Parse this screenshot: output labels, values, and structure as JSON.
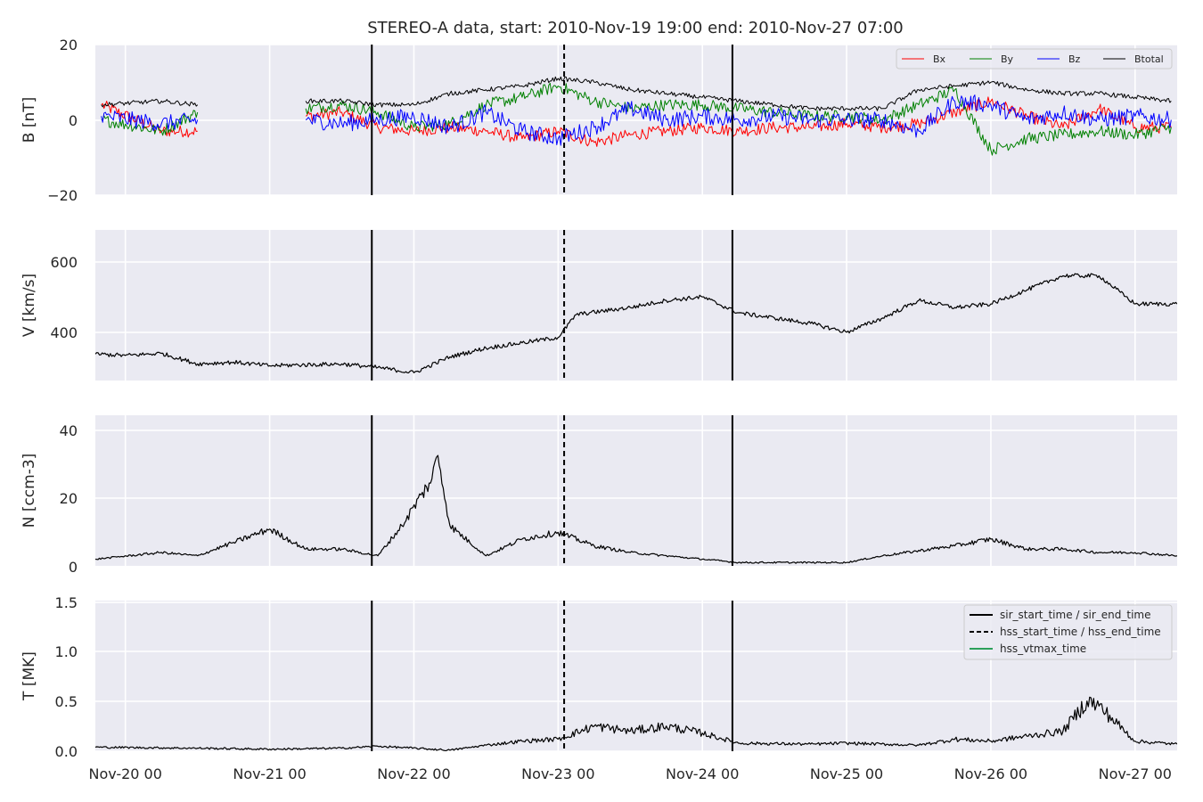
{
  "figure": {
    "title": "STEREO-A data, start: 2010-Nov-19 19:00  end: 2010-Nov-27 07:00"
  },
  "colors": {
    "panel_bg": "#eaeaf2",
    "grid": "#ffffff",
    "Bx": "#ff0000",
    "By": "#008000",
    "Bz": "#0000ff",
    "Btotal": "#000000",
    "event_line": "#000000",
    "vtmax": "#2ca05a"
  },
  "chart_data": {
    "type": "line",
    "x_range": [
      "2010-11-19 19:00",
      "2010-11-27 07:00"
    ],
    "x_ticks": [
      "Nov-20 00",
      "Nov-21 00",
      "Nov-22 00",
      "Nov-23 00",
      "Nov-24 00",
      "Nov-25 00",
      "Nov-26 00",
      "Nov-27 00"
    ],
    "event_lines": [
      {
        "name": "sir_start_time",
        "time": "2010-11-21 17:00",
        "style": "solid"
      },
      {
        "name": "hss_start_time",
        "time": "2010-11-23 01:00",
        "style": "dashed"
      },
      {
        "name": "sir_end_time",
        "time": "2010-11-24 05:00",
        "style": "solid"
      }
    ],
    "panels": [
      {
        "ylabel": "B [nT]",
        "ylim": [
          -20,
          20
        ],
        "yticks": [
          "20",
          "0",
          "−20"
        ],
        "legend": {
          "position": "top-right",
          "entries": [
            "Bx",
            "By",
            "Bz",
            "Btotal"
          ]
        },
        "series": [
          {
            "name": "Bx",
            "x": [
              "2010-11-19 20:00",
              "2010-11-20 06:00",
              "2010-11-20 12:00",
              "2010-11-20 20:00",
              "2010-11-21 06:00",
              "2010-11-21 12:00",
              "2010-11-21 18:00",
              "2010-11-22 00:00",
              "2010-11-22 06:00",
              "2010-11-22 12:00",
              "2010-11-22 18:00",
              "2010-11-23 00:00",
              "2010-11-23 06:00",
              "2010-11-23 12:00",
              "2010-11-23 18:00",
              "2010-11-24 00:00",
              "2010-11-24 06:00",
              "2010-11-24 12:00",
              "2010-11-24 18:00",
              "2010-11-25 00:00",
              "2010-11-25 06:00",
              "2010-11-25 12:00",
              "2010-11-25 18:00",
              "2010-11-26 00:00",
              "2010-11-26 06:00",
              "2010-11-26 12:00",
              "2010-11-26 18:00",
              "2010-11-27 00:00",
              "2010-11-27 06:00"
            ],
            "values": [
              4,
              -3,
              -3,
              null,
              1,
              2,
              -2,
              -3,
              -2,
              -3,
              -5,
              -3,
              -6,
              -4,
              -3,
              -2,
              -3,
              -2,
              -2,
              -1,
              -2,
              -1,
              2,
              5,
              1,
              -2,
              3,
              -2,
              -2
            ]
          },
          {
            "name": "By",
            "x": [
              "2010-11-19 20:00",
              "2010-11-20 06:00",
              "2010-11-20 12:00",
              "2010-11-20 20:00",
              "2010-11-21 06:00",
              "2010-11-21 12:00",
              "2010-11-21 18:00",
              "2010-11-22 00:00",
              "2010-11-22 06:00",
              "2010-11-22 12:00",
              "2010-11-22 18:00",
              "2010-11-23 00:00",
              "2010-11-23 06:00",
              "2010-11-23 12:00",
              "2010-11-23 18:00",
              "2010-11-24 00:00",
              "2010-11-24 06:00",
              "2010-11-24 12:00",
              "2010-11-24 18:00",
              "2010-11-25 00:00",
              "2010-11-25 06:00",
              "2010-11-25 12:00",
              "2010-11-25 18:00",
              "2010-11-26 00:00",
              "2010-11-26 06:00",
              "2010-11-26 12:00",
              "2010-11-26 18:00",
              "2010-11-27 00:00",
              "2010-11-27 06:00"
            ],
            "values": [
              0,
              -3,
              2,
              null,
              3,
              4,
              2,
              -2,
              -1,
              4,
              6,
              9,
              5,
              3,
              4,
              4,
              3,
              2,
              1,
              1,
              0,
              4,
              8,
              -8,
              -5,
              -4,
              -3,
              -4,
              -2
            ]
          },
          {
            "name": "Bz",
            "x": [
              "2010-11-19 20:00",
              "2010-11-20 06:00",
              "2010-11-20 12:00",
              "2010-11-20 20:00",
              "2010-11-21 06:00",
              "2010-11-21 12:00",
              "2010-11-21 18:00",
              "2010-11-22 00:00",
              "2010-11-22 06:00",
              "2010-11-22 12:00",
              "2010-11-22 18:00",
              "2010-11-23 00:00",
              "2010-11-23 06:00",
              "2010-11-23 12:00",
              "2010-11-23 18:00",
              "2010-11-24 00:00",
              "2010-11-24 06:00",
              "2010-11-24 12:00",
              "2010-11-24 18:00",
              "2010-11-25 00:00",
              "2010-11-25 06:00",
              "2010-11-25 12:00",
              "2010-11-25 18:00",
              "2010-11-26 00:00",
              "2010-11-26 06:00",
              "2010-11-26 12:00",
              "2010-11-26 18:00",
              "2010-11-27 00:00",
              "2010-11-27 06:00"
            ],
            "values": [
              1,
              -1,
              0,
              null,
              0,
              -1,
              0,
              1,
              -2,
              2,
              -3,
              -5,
              -2,
              3,
              0,
              1,
              0,
              1,
              0,
              0,
              0,
              -3,
              5,
              4,
              0,
              2,
              0,
              1,
              0
            ]
          },
          {
            "name": "Btotal",
            "x": [
              "2010-11-19 20:00",
              "2010-11-20 06:00",
              "2010-11-20 12:00",
              "2010-11-20 20:00",
              "2010-11-21 06:00",
              "2010-11-21 12:00",
              "2010-11-21 18:00",
              "2010-11-22 00:00",
              "2010-11-22 06:00",
              "2010-11-22 12:00",
              "2010-11-22 18:00",
              "2010-11-23 00:00",
              "2010-11-23 06:00",
              "2010-11-23 12:00",
              "2010-11-23 18:00",
              "2010-11-24 00:00",
              "2010-11-24 06:00",
              "2010-11-24 12:00",
              "2010-11-24 18:00",
              "2010-11-25 00:00",
              "2010-11-25 06:00",
              "2010-11-25 12:00",
              "2010-11-25 18:00",
              "2010-11-26 00:00",
              "2010-11-26 06:00",
              "2010-11-26 12:00",
              "2010-11-26 18:00",
              "2010-11-27 00:00",
              "2010-11-27 06:00"
            ],
            "values": [
              4,
              5,
              4,
              null,
              5,
              5,
              4,
              4,
              7,
              8,
              9,
              11,
              10,
              8,
              7,
              6,
              5,
              4,
              3,
              3,
              3,
              8,
              9,
              10,
              8,
              7,
              7,
              6,
              5
            ]
          }
        ]
      },
      {
        "ylabel": "V [km/s]",
        "ylim": [
          263,
          690
        ],
        "yticks": [
          "600",
          "400"
        ],
        "series": [
          {
            "name": "V",
            "x": [
              "2010-11-19 19:00",
              "2010-11-20 00:00",
              "2010-11-20 06:00",
              "2010-11-20 12:00",
              "2010-11-20 18:00",
              "2010-11-21 00:00",
              "2010-11-21 12:00",
              "2010-11-21 18:00",
              "2010-11-22 00:00",
              "2010-11-22 06:00",
              "2010-11-22 12:00",
              "2010-11-22 18:00",
              "2010-11-23 00:00",
              "2010-11-23 03:00",
              "2010-11-23 12:00",
              "2010-11-23 18:00",
              "2010-11-24 00:00",
              "2010-11-24 06:00",
              "2010-11-24 12:00",
              "2010-11-24 18:00",
              "2010-11-25 00:00",
              "2010-11-25 06:00",
              "2010-11-25 12:00",
              "2010-11-25 18:00",
              "2010-11-26 00:00",
              "2010-11-26 06:00",
              "2010-11-26 12:00",
              "2010-11-26 18:00",
              "2010-11-27 00:00",
              "2010-11-27 07:00"
            ],
            "values": [
              338,
              334,
              340,
              310,
              315,
              305,
              310,
              300,
              285,
              330,
              355,
              370,
              385,
              450,
              470,
              490,
              500,
              455,
              440,
              425,
              400,
              440,
              490,
              470,
              480,
              520,
              560,
              560,
              480,
              480
            ]
          }
        ]
      },
      {
        "ylabel": "N [ccm-3]",
        "ylim": [
          0,
          45
        ],
        "yticks": [
          "40",
          "20",
          "0"
        ],
        "series": [
          {
            "name": "N",
            "x": [
              "2010-11-19 19:00",
              "2010-11-20 06:00",
              "2010-11-20 12:00",
              "2010-11-20 18:00",
              "2010-11-21 00:00",
              "2010-11-21 06:00",
              "2010-11-21 12:00",
              "2010-11-21 18:00",
              "2010-11-21 22:00",
              "2010-11-22 03:00",
              "2010-11-22 04:00",
              "2010-11-22 06:00",
              "2010-11-22 12:00",
              "2010-11-22 18:00",
              "2010-11-23 00:00",
              "2010-11-23 06:00",
              "2010-11-23 12:00",
              "2010-11-24 00:00",
              "2010-11-24 06:00",
              "2010-11-24 18:00",
              "2010-11-25 00:00",
              "2010-11-25 06:00",
              "2010-11-25 18:00",
              "2010-11-26 00:00",
              "2010-11-26 06:00",
              "2010-11-26 12:00",
              "2010-11-26 18:00",
              "2010-11-27 00:00",
              "2010-11-27 07:00"
            ],
            "values": [
              2,
              4,
              3,
              7,
              11,
              5,
              5,
              3,
              12,
              26,
              33,
              12,
              3,
              8,
              10,
              6,
              4,
              2,
              1,
              1,
              1,
              3,
              6,
              8,
              5,
              5,
              4,
              4,
              3
            ]
          }
        ]
      },
      {
        "ylabel": "T [MK]",
        "ylim": [
          0,
          1.5
        ],
        "yticks": [
          "1.5",
          "1.0",
          "0.5",
          "0.0"
        ],
        "legend": {
          "position": "top-right",
          "entries": [
            "sir_start_time / sir_end_time",
            "hss_start_time / hss_end_time",
            "hss_vtmax_time"
          ]
        },
        "series": [
          {
            "name": "T",
            "x": [
              "2010-11-19 19:00",
              "2010-11-20 12:00",
              "2010-11-21 00:00",
              "2010-11-21 12:00",
              "2010-11-21 18:00",
              "2010-11-22 06:00",
              "2010-11-22 12:00",
              "2010-11-22 18:00",
              "2010-11-23 00:00",
              "2010-11-23 06:00",
              "2010-11-23 12:00",
              "2010-11-23 18:00",
              "2010-11-24 00:00",
              "2010-11-24 06:00",
              "2010-11-24 18:00",
              "2010-11-25 00:00",
              "2010-11-25 12:00",
              "2010-11-25 18:00",
              "2010-11-26 00:00",
              "2010-11-26 06:00",
              "2010-11-26 12:00",
              "2010-11-26 16:00",
              "2010-11-26 18:00",
              "2010-11-27 00:00",
              "2010-11-27 07:00"
            ],
            "values": [
              0.04,
              0.03,
              0.02,
              0.03,
              0.05,
              0.01,
              0.06,
              0.1,
              0.12,
              0.25,
              0.2,
              0.25,
              0.18,
              0.08,
              0.07,
              0.08,
              0.06,
              0.12,
              0.1,
              0.15,
              0.2,
              0.5,
              0.45,
              0.1,
              0.07
            ]
          }
        ]
      }
    ]
  }
}
